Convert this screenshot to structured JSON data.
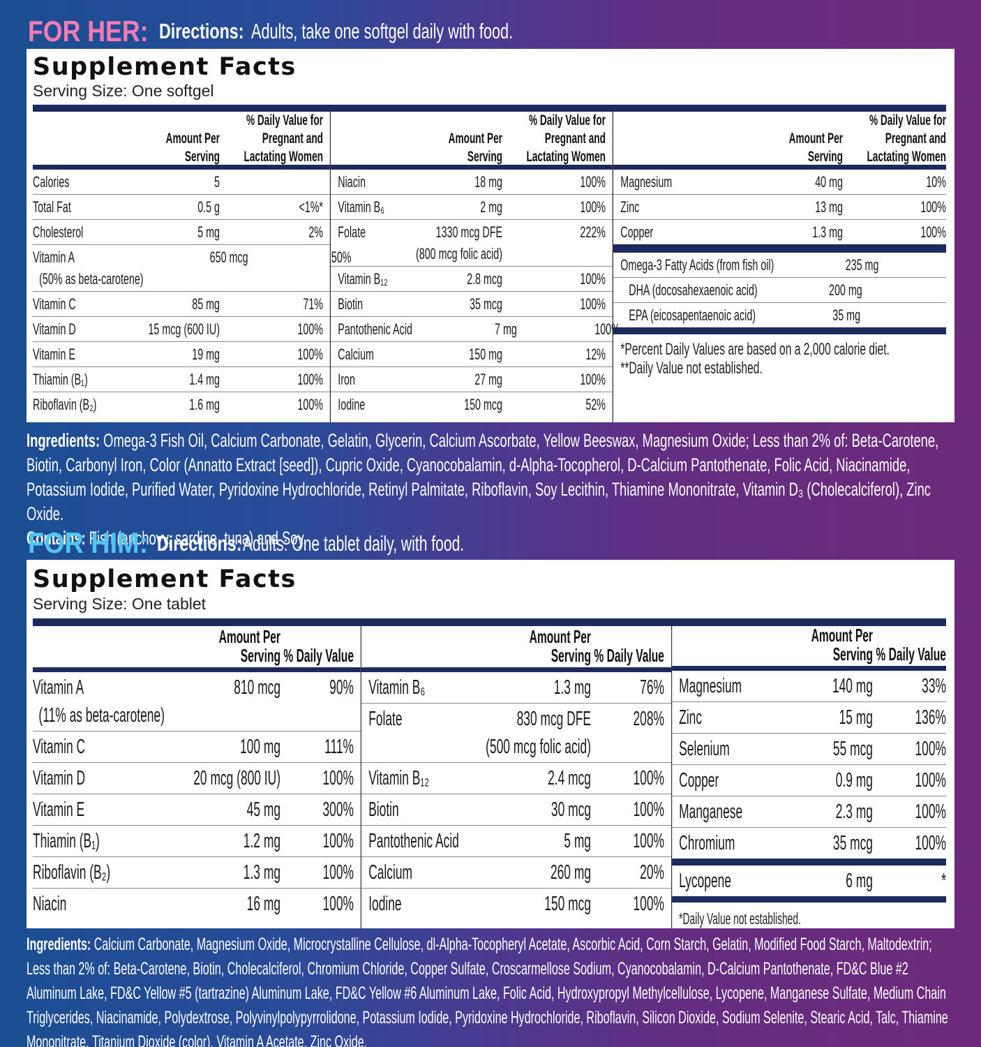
{
  "her": {
    "label": "FOR HER:",
    "directions_label": "Directions:",
    "directions": "Adults, take one softgel daily with food.",
    "facts": {
      "title": "Supplement Facts",
      "serving": "Serving Size: One softgel",
      "amount_header": "Amount Per Serving",
      "dv_header": "% Daily Value for Pregnant and Lactating Women",
      "columns": [
        {
          "rows": [
            {
              "name": "Calories",
              "amount": "5"
            },
            {
              "name": "Total Fat",
              "amount": "0.5 g",
              "dv": "<1%*"
            },
            {
              "name": "Cholesterol",
              "amount": "5 mg",
              "dv": "2%"
            },
            {
              "name": "Vitamin A",
              "name_note": "(50% as beta-carotene)",
              "amount": "650 mcg",
              "dv": "50%"
            },
            {
              "name": "Vitamin C",
              "amount": "85 mg",
              "dv": "71%"
            },
            {
              "name": "Vitamin D",
              "amount": "15 mcg (600 IU)",
              "dv": "100%"
            },
            {
              "name": "Vitamin E",
              "amount": "19 mg",
              "dv": "100%"
            },
            {
              "name": "Thiamin (B₁)",
              "amount": "1.4 mg",
              "dv": "100%"
            },
            {
              "name": "Riboflavin (B₂)",
              "amount": "1.6 mg",
              "dv": "100%"
            }
          ]
        },
        {
          "rows": [
            {
              "name": "Niacin",
              "amount": "18 mg",
              "dv": "100%"
            },
            {
              "name": "Vitamin B₆",
              "amount": "2 mg",
              "dv": "100%"
            },
            {
              "name": "Folate",
              "amount": "1330 mcg DFE",
              "amount_note": "(800 mcg folic acid)",
              "dv": "222%"
            },
            {
              "name": "Vitamin B₁₂",
              "amount": "2.8 mcg",
              "dv": "100%"
            },
            {
              "name": "Biotin",
              "amount": "35 mcg",
              "dv": "100%"
            },
            {
              "name": "Pantothenic Acid",
              "amount": "7 mg",
              "dv": "100%"
            },
            {
              "name": "Calcium",
              "amount": "150 mg",
              "dv": "12%"
            },
            {
              "name": "Iron",
              "amount": "27 mg",
              "dv": "100%"
            },
            {
              "name": "Iodine",
              "amount": "150 mcg",
              "dv": "52%"
            }
          ]
        },
        {
          "rows": [
            {
              "name": "Magnesium",
              "amount": "40 mg",
              "dv": "10%"
            },
            {
              "name": "Zinc",
              "amount": "13 mg",
              "dv": "100%"
            },
            {
              "name": "Copper",
              "amount": "1.3 mg",
              "dv": "100%"
            }
          ],
          "extra_rows": [
            {
              "name": "Omega-3 Fatty Acids (from fish oil)",
              "amount": "235 mg",
              "dv": "**"
            },
            {
              "name": "DHA (docosahexaenoic acid)",
              "amount": "200 mg",
              "dv": "**",
              "indent": true
            },
            {
              "name": "EPA (eicosapentaenoic acid)",
              "amount": "35 mg",
              "dv": "**",
              "indent": true
            }
          ],
          "footnotes": [
            "*Percent Daily Values are based on a 2,000 calorie diet.",
            "**Daily Value not established."
          ]
        }
      ]
    },
    "ingredients_label": "Ingredients:",
    "ingredients": "Omega-3 Fish Oil, Calcium Carbonate, Gelatin, Glycerin, Calcium Ascorbate, Yellow Beeswax, Magnesium Oxide; Less than 2% of: Beta-Carotene, Biotin, Carbonyl Iron, Color (Annatto Extract [seed]), Cupric Oxide, Cyanocobalamin, d-Alpha-Tocopherol, D-Calcium Pantothenate, Folic Acid, Niacinamide, Potassium Iodide, Purified Water, Pyridoxine Hydrochloride, Retinyl Palmitate, Riboflavin, Soy Lecithin, Thiamine Mononitrate, Vitamin D₃ (Cholecalciferol), Zinc Oxide.",
    "contains_label": "Contains:",
    "contains": "Fish (anchovy, sardine, tuna) and Soy."
  },
  "him": {
    "label": "FOR HIM:",
    "directions_label": "Directions:",
    "directions": "Adults: One tablet daily, with food.",
    "facts": {
      "title": "Supplement Facts",
      "serving": "Serving Size: One tablet",
      "amount_header": "Amount Per Serving",
      "dv_header": "% Daily Value",
      "columns": [
        {
          "rows": [
            {
              "name": "Vitamin A",
              "name_note": "(11% as beta-carotene)",
              "amount": "810 mcg",
              "dv": "90%"
            },
            {
              "name": "Vitamin C",
              "amount": "100 mg",
              "dv": "111%"
            },
            {
              "name": "Vitamin D",
              "amount": "20 mcg (800 IU)",
              "dv": "100%"
            },
            {
              "name": "Vitamin E",
              "amount": "45 mg",
              "dv": "300%"
            },
            {
              "name": "Thiamin (B₁)",
              "amount": "1.2 mg",
              "dv": "100%"
            },
            {
              "name": "Riboflavin (B₂)",
              "amount": "1.3 mg",
              "dv": "100%"
            },
            {
              "name": "Niacin",
              "amount": "16 mg",
              "dv": "100%"
            }
          ]
        },
        {
          "rows": [
            {
              "name": "Vitamin B₆",
              "amount": "1.3 mg",
              "dv": "76%"
            },
            {
              "name": "Folate",
              "amount": "830 mcg DFE",
              "amount_note": "(500 mcg folic acid)",
              "dv": "208%"
            },
            {
              "name": "Vitamin B₁₂",
              "amount": "2.4 mcg",
              "dv": "100%"
            },
            {
              "name": "Biotin",
              "amount": "30 mcg",
              "dv": "100%"
            },
            {
              "name": "Pantothenic Acid",
              "amount": "5 mg",
              "dv": "100%"
            },
            {
              "name": "Calcium",
              "amount": "260 mg",
              "dv": "20%"
            },
            {
              "name": "Iodine",
              "amount": "150 mcg",
              "dv": "100%"
            }
          ]
        },
        {
          "rows": [
            {
              "name": "Magnesium",
              "amount": "140 mg",
              "dv": "33%"
            },
            {
              "name": "Zinc",
              "amount": "15 mg",
              "dv": "136%"
            },
            {
              "name": "Selenium",
              "amount": "55 mcg",
              "dv": "100%"
            },
            {
              "name": "Copper",
              "amount": "0.9 mg",
              "dv": "100%"
            },
            {
              "name": "Manganese",
              "amount": "2.3 mg",
              "dv": "100%"
            },
            {
              "name": "Chromium",
              "amount": "35 mcg",
              "dv": "100%"
            }
          ],
          "extra_rows": [
            {
              "name": "Lycopene",
              "amount": "6 mg",
              "dv": "*"
            }
          ],
          "footnotes": [
            "*Daily Value not established."
          ]
        }
      ]
    },
    "ingredients_label": "Ingredients:",
    "ingredients": "Calcium Carbonate, Magnesium Oxide, Microcrystalline Cellulose, dl-Alpha-Tocopheryl Acetate, Ascorbic Acid, Corn Starch, Gelatin, Modified Food Starch, Maltodextrin; Less than 2% of: Beta-Carotene, Biotin, Cholecalciferol, Chromium Chloride, Copper Sulfate, Croscarmellose Sodium, Cyanocobalamin, D-Calcium Pantothenate, FD&C Blue #2 Aluminum Lake, FD&C Yellow #5 (tartrazine) Aluminum Lake, FD&C Yellow #6 Aluminum Lake, Folic Acid, Hydroxypropyl Methylcellulose, Lycopene, Manganese Sulfate, Medium Chain Triglycerides, Niacinamide, Polydextrose, Polyvinylpolypyrrolidone, Potassium Iodide, Pyridoxine Hydrochloride, Riboflavin, Silicon Dioxide, Sodium Selenite, Stearic Acid, Talc, Thiamine Mononitrate, Titanium Dioxide (color), Vitamin A Acetate, Zinc Oxide."
  }
}
